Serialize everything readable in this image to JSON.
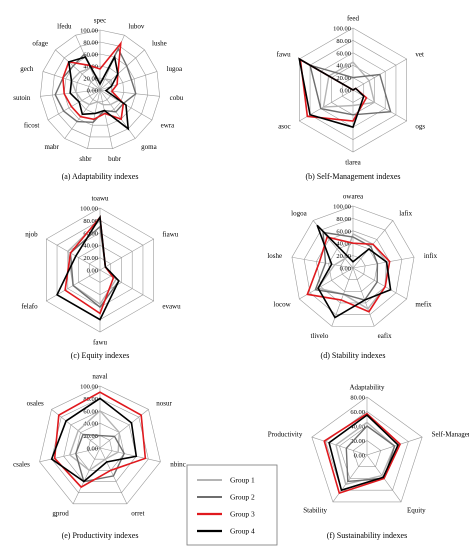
{
  "chart_data": [
    {
      "type": "radar",
      "caption": "(a) Adaptability indexes",
      "rmax": 100,
      "rings": 5,
      "tick_labels": [
        "0.00",
        "20.00",
        "40.00",
        "60.00",
        "80.00",
        "100.00"
      ],
      "axes": [
        "spec",
        "lubov",
        "lushe",
        "lugoa",
        "cobu",
        "ewra",
        "goma",
        "bubr",
        "shbr",
        "mabr",
        "ficost",
        "sutoin",
        "gech",
        "ofage",
        "lfedu"
      ],
      "series": [
        {
          "name": "Group 1",
          "values": [
            15,
            20,
            25,
            20,
            20,
            35,
            30,
            25,
            20,
            30,
            35,
            40,
            50,
            45,
            40
          ]
        },
        {
          "name": "Group 2",
          "values": [
            10,
            75,
            60,
            55,
            60,
            45,
            45,
            35,
            55,
            65,
            70,
            75,
            65,
            60,
            65
          ]
        },
        {
          "name": "Group 3",
          "values": [
            35,
            85,
            40,
            30,
            20,
            45,
            60,
            40,
            50,
            55,
            55,
            60,
            65,
            70,
            45
          ]
        },
        {
          "name": "Group 4",
          "values": [
            10,
            60,
            40,
            20,
            10,
            50,
            80,
            35,
            40,
            50,
            40,
            50,
            50,
            70,
            60
          ]
        }
      ]
    },
    {
      "type": "radar",
      "caption": "(b) Self-Management indexes",
      "rmax": 100,
      "rings": 5,
      "tick_labels": [
        "0.00",
        "20.00",
        "40.00",
        "60.00",
        "80.00",
        "100.00"
      ],
      "axes": [
        "feed",
        "vet",
        "ogs",
        "tlarea",
        "asoc",
        "fawu"
      ],
      "series": [
        {
          "name": "Group 1",
          "values": [
            45,
            30,
            40,
            25,
            55,
            45
          ]
        },
        {
          "name": "Group 2",
          "values": [
            20,
            50,
            70,
            40,
            60,
            80
          ]
        },
        {
          "name": "Group 3",
          "values": [
            0,
            5,
            25,
            50,
            85,
            98
          ]
        },
        {
          "name": "Group 4",
          "values": [
            0,
            5,
            20,
            60,
            80,
            100
          ]
        }
      ]
    },
    {
      "type": "radar",
      "caption": "(c) Equity indexes",
      "rmax": 100,
      "rings": 5,
      "tick_labels": [
        "0.00",
        "20.00",
        "40.00",
        "60.00",
        "80.00",
        "100.00"
      ],
      "axes": [
        "toawu",
        "fiawu",
        "evawu",
        "fawu",
        "felafo",
        "njob"
      ],
      "series": [
        {
          "name": "Group 1",
          "values": [
            80,
            10,
            30,
            55,
            50,
            60
          ]
        },
        {
          "name": "Group 2",
          "values": [
            70,
            10,
            35,
            60,
            50,
            55
          ]
        },
        {
          "name": "Group 3",
          "values": [
            85,
            10,
            25,
            70,
            65,
            55
          ]
        },
        {
          "name": "Group 4",
          "values": [
            85,
            10,
            35,
            80,
            80,
            45
          ]
        }
      ]
    },
    {
      "type": "radar",
      "caption": "(d) Stability indexes",
      "rmax": 100,
      "rings": 5,
      "tick_labels": [
        "0.00",
        "20.00",
        "40.00",
        "60.00",
        "80.00",
        "100.00"
      ],
      "axes": [
        "owarea",
        "lafix",
        "infix",
        "mefix",
        "eafix",
        "tlivelo",
        "locow",
        "loshe",
        "logoa"
      ],
      "series": [
        {
          "name": "Group 1",
          "values": [
            55,
            50,
            55,
            60,
            70,
            45,
            65,
            30,
            20
          ]
        },
        {
          "name": "Group 2",
          "values": [
            50,
            45,
            40,
            45,
            55,
            45,
            70,
            45,
            75
          ]
        },
        {
          "name": "Group 3",
          "values": [
            40,
            50,
            60,
            60,
            75,
            55,
            85,
            55,
            65
          ]
        },
        {
          "name": "Group 4",
          "values": [
            10,
            40,
            55,
            70,
            55,
            85,
            65,
            35,
            90
          ]
        }
      ]
    },
    {
      "type": "radar",
      "caption": "(e) Productivity indexes",
      "rmax": 100,
      "rings": 5,
      "tick_labels": [
        "0.00",
        "20.00",
        "40.00",
        "60.00",
        "80.00",
        "100.00"
      ],
      "axes": [
        "naval",
        "nosur",
        "nbinc",
        "orret",
        "gprod",
        "csales",
        "osales"
      ],
      "series": [
        {
          "name": "Group 1",
          "values": [
            60,
            40,
            30,
            20,
            40,
            50,
            45
          ]
        },
        {
          "name": "Group 2",
          "values": [
            20,
            30,
            40,
            50,
            60,
            40,
            35
          ]
        },
        {
          "name": "Group 3",
          "values": [
            90,
            85,
            75,
            40,
            70,
            75,
            85
          ]
        },
        {
          "name": "Group 4",
          "values": [
            80,
            65,
            60,
            25,
            60,
            80,
            70
          ]
        }
      ]
    },
    {
      "type": "radar",
      "caption": "(f) Sustainability indexes",
      "rmax": 80,
      "rings": 4,
      "tick_labels": [
        "0.00",
        "20.00",
        "40.00",
        "60.00",
        "80.00"
      ],
      "axes": [
        "Adaptability",
        "Self-Management",
        "Equity",
        "Stability",
        "Productivity"
      ],
      "series": [
        {
          "name": "Group 1",
          "values": [
            45,
            40,
            35,
            50,
            45
          ]
        },
        {
          "name": "Group 2",
          "values": [
            40,
            40,
            40,
            45,
            30
          ]
        },
        {
          "name": "Group 3",
          "values": [
            57,
            48,
            40,
            65,
            62
          ]
        },
        {
          "name": "Group 4",
          "values": [
            55,
            45,
            38,
            60,
            55
          ]
        }
      ]
    }
  ],
  "legend": [
    "Group 1",
    "Group 2",
    "Group 3",
    "Group 4"
  ],
  "colors": {
    "Group 1": "#b4b4b4",
    "Group 2": "#6e6e6e",
    "Group 3": "#e0191e",
    "Group 4": "#000000",
    "grid": "#9a9a9a"
  }
}
